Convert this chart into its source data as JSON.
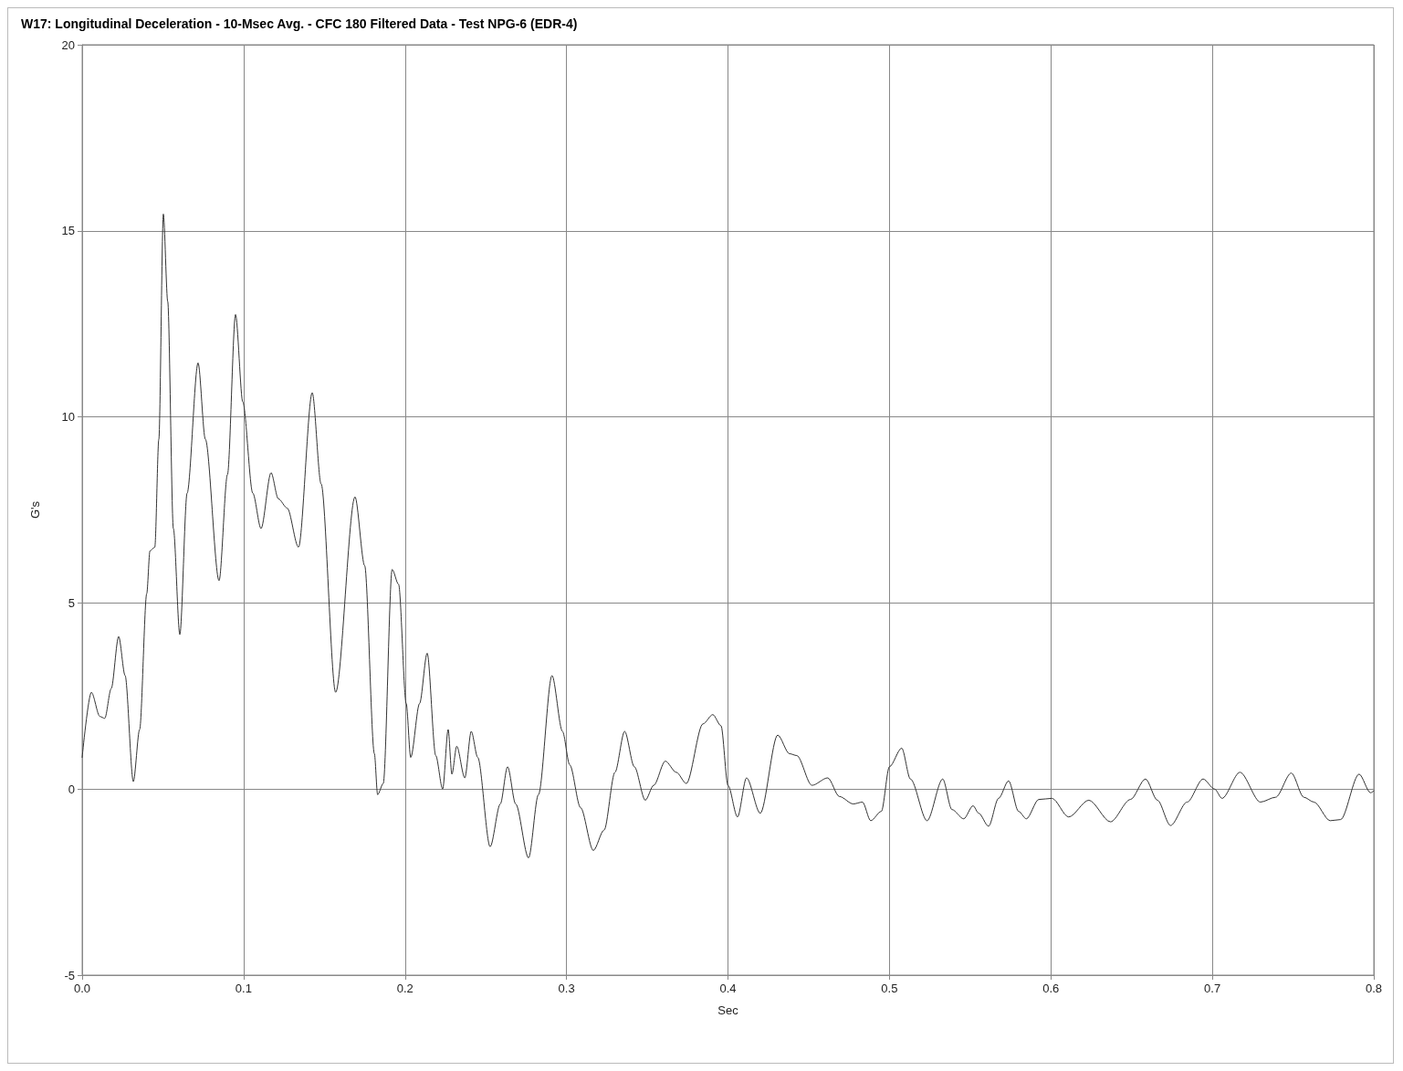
{
  "chart_data": {
    "type": "line",
    "title": "W17: Longitudinal Deceleration - 10-Msec Avg. - CFC 180 Filtered Data - Test NPG-6 (EDR-4)",
    "xlabel": "Sec",
    "ylabel": "G's",
    "xlim": [
      0,
      0.8
    ],
    "xticks": [
      {
        "value": 0,
        "label": "0.0"
      },
      0.1,
      0.2,
      0.3,
      0.4,
      0.5,
      0.6,
      0.7,
      0.8
    ],
    "ylim": [
      -5,
      20
    ],
    "yticks": [
      -5,
      0,
      5,
      10,
      15,
      20
    ],
    "grid": true,
    "marker": "none",
    "line_style": "solid",
    "series": [
      {
        "color": "#333333",
        "x": [
          0,
          0.0057,
          0.011,
          0.014,
          0.018,
          0.0226,
          0.0266,
          0.0317,
          0.0356,
          0.04,
          0.042,
          0.045,
          0.0475,
          0.0503,
          0.053,
          0.0565,
          0.0605,
          0.065,
          0.0718,
          0.0763,
          0.0848,
          0.09,
          0.095,
          0.0995,
          0.1057,
          0.1108,
          0.117,
          0.1215,
          0.127,
          0.134,
          0.1425,
          0.148,
          0.157,
          0.169,
          0.175,
          0.181,
          0.183,
          0.1865,
          0.192,
          0.196,
          0.2007,
          0.2035,
          0.209,
          0.2137,
          0.219,
          0.2233,
          0.2267,
          0.229,
          0.232,
          0.237,
          0.241,
          0.245,
          0.2527,
          0.259,
          0.2635,
          0.2685,
          0.2765,
          0.2826,
          0.291,
          0.2975,
          0.302,
          0.3087,
          0.3166,
          0.3233,
          0.33,
          0.336,
          0.342,
          0.3488,
          0.354,
          0.3612,
          0.368,
          0.3742,
          0.3845,
          0.3906,
          0.3957,
          0.4,
          0.4059,
          0.4115,
          0.42,
          0.4308,
          0.4381,
          0.4426,
          0.452,
          0.4618,
          0.469,
          0.4776,
          0.4833,
          0.4884,
          0.495,
          0.5,
          0.5076,
          0.513,
          0.5233,
          0.533,
          0.5387,
          0.546,
          0.5518,
          0.5553,
          0.5614,
          0.5676,
          0.5738,
          0.58,
          0.5848,
          0.5925,
          0.6007,
          0.611,
          0.6235,
          0.6369,
          0.6493,
          0.6586,
          0.666,
          0.6741,
          0.6844,
          0.6943,
          0.7014,
          0.706,
          0.7171,
          0.7298,
          0.7392,
          0.7489,
          0.7567,
          0.7629,
          0.773,
          0.7794,
          0.7909,
          0.798,
          0.8
        ],
        "values": [
          0.85,
          2.6,
          1.95,
          1.9,
          2.7,
          4.1,
          3.05,
          0.2,
          1.6,
          5.25,
          6.4,
          6.5,
          9.4,
          15.45,
          13.1,
          7.0,
          4.15,
          7.95,
          11.45,
          9.4,
          5.6,
          8.45,
          12.75,
          10.4,
          7.95,
          7.0,
          8.5,
          7.8,
          7.55,
          6.5,
          10.65,
          8.2,
          2.6,
          7.85,
          6.0,
          0.95,
          -0.15,
          0.15,
          5.9,
          5.5,
          2.3,
          0.85,
          2.3,
          3.65,
          0.9,
          0.0,
          1.6,
          0.4,
          1.15,
          0.3,
          1.55,
          0.85,
          -1.55,
          -0.4,
          0.6,
          -0.4,
          -1.85,
          -0.15,
          3.05,
          1.55,
          0.65,
          -0.5,
          -1.65,
          -1.1,
          0.45,
          1.55,
          0.6,
          -0.3,
          0.1,
          0.75,
          0.45,
          0.15,
          1.75,
          2.0,
          1.7,
          0.1,
          -0.75,
          0.3,
          -0.65,
          1.45,
          0.95,
          0.9,
          0.1,
          0.3,
          -0.2,
          -0.4,
          -0.35,
          -0.85,
          -0.6,
          0.6,
          1.1,
          0.27,
          -0.85,
          0.27,
          -0.55,
          -0.8,
          -0.45,
          -0.65,
          -1.0,
          -0.25,
          0.22,
          -0.6,
          -0.8,
          -0.28,
          -0.25,
          -0.75,
          -0.3,
          -0.88,
          -0.28,
          0.27,
          -0.3,
          -0.98,
          -0.35,
          0.27,
          0.0,
          -0.25,
          0.45,
          -0.35,
          -0.22,
          0.43,
          -0.22,
          -0.35,
          -0.85,
          -0.82,
          0.4,
          -0.1,
          -0.05
        ]
      }
    ]
  }
}
